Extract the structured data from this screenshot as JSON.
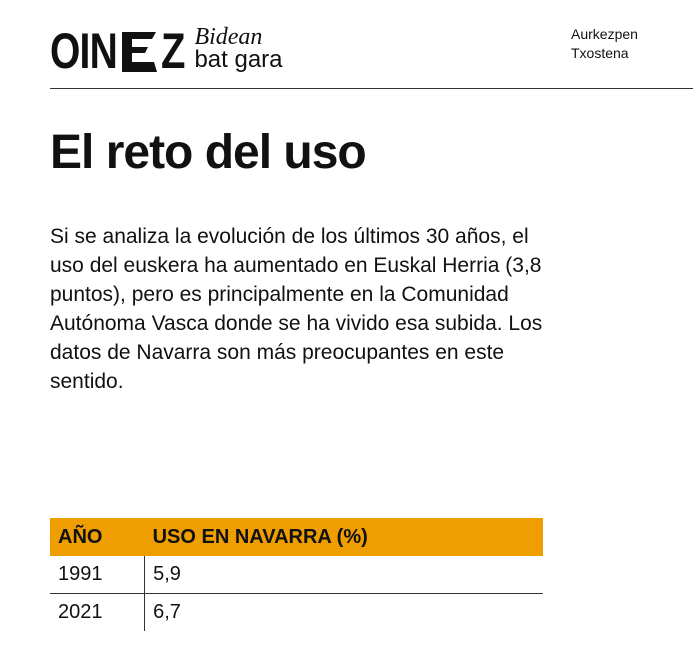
{
  "logo": {
    "text_left": "OIN",
    "text_right": "Z",
    "tagline_top": "Bidean",
    "tagline_bottom": "bat gara"
  },
  "header": {
    "line1": "Aurkezpen",
    "line2": "Txostena"
  },
  "title": "El reto del uso",
  "paragraph": "Si se analiza la evolución de los últimos 30 años, el uso del euskera ha aumentado en Euskal Herria (3,8 puntos), pero es principalmente en la Comunidad Autónoma Vasca donde se ha vivido esa subida. Los datos de Navarra son más preocupantes en este sentido.",
  "table": {
    "headers": [
      "AÑO",
      "USO EN NAVARRA (%)"
    ],
    "rows": [
      [
        "1991",
        "5,9"
      ],
      [
        "2021",
        "6,7"
      ]
    ],
    "header_color": "#EE9E00"
  }
}
